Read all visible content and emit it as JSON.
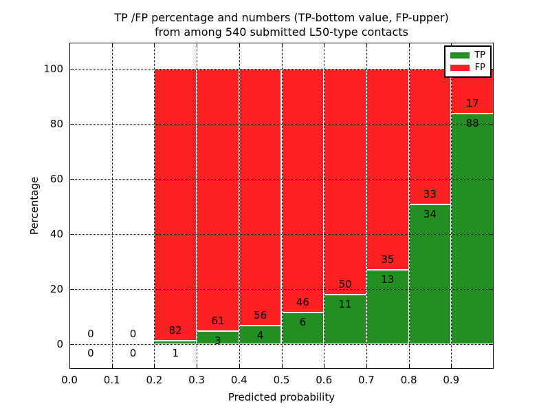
{
  "title": {
    "line1": "TP /FP percentage and numbers (TP-bottom value, FP-upper)",
    "line2": "from among 540 submitted L50-type contacts"
  },
  "chart_data": {
    "type": "bar",
    "stacked": true,
    "normalized_to_percent": true,
    "title": "TP /FP percentage and numbers (TP-bottom value, FP-upper) from among 540 submitted L50-type contacts",
    "xlabel": "Predicted probability",
    "ylabel": "Percentage",
    "xlim": [
      0.0,
      1.0
    ],
    "ylim": [
      -10,
      110
    ],
    "xticks": [
      "0.0",
      "0.1",
      "0.2",
      "0.3",
      "0.4",
      "0.5",
      "0.6",
      "0.7",
      "0.8",
      "0.9"
    ],
    "yticks": [
      0,
      20,
      40,
      60,
      80,
      100
    ],
    "grid": "dotted",
    "legend_position": "upper right",
    "bin_edges": [
      0.0,
      0.1,
      0.2,
      0.3,
      0.4,
      0.5,
      0.6,
      0.7,
      0.8,
      0.9,
      1.0
    ],
    "series": [
      {
        "name": "TP",
        "color": "#219021",
        "counts": [
          0,
          0,
          1,
          3,
          4,
          6,
          11,
          13,
          34,
          88
        ]
      },
      {
        "name": "FP",
        "color": "#ff2121",
        "counts": [
          0,
          0,
          82,
          61,
          56,
          46,
          50,
          35,
          33,
          17
        ]
      }
    ],
    "total_contacts": 540
  },
  "colors": {
    "tp": "#219021",
    "fp": "#ff2121",
    "axis": "#000000",
    "grid": "#000000",
    "bar_edge": "#ffffff",
    "background": "#ffffff"
  }
}
